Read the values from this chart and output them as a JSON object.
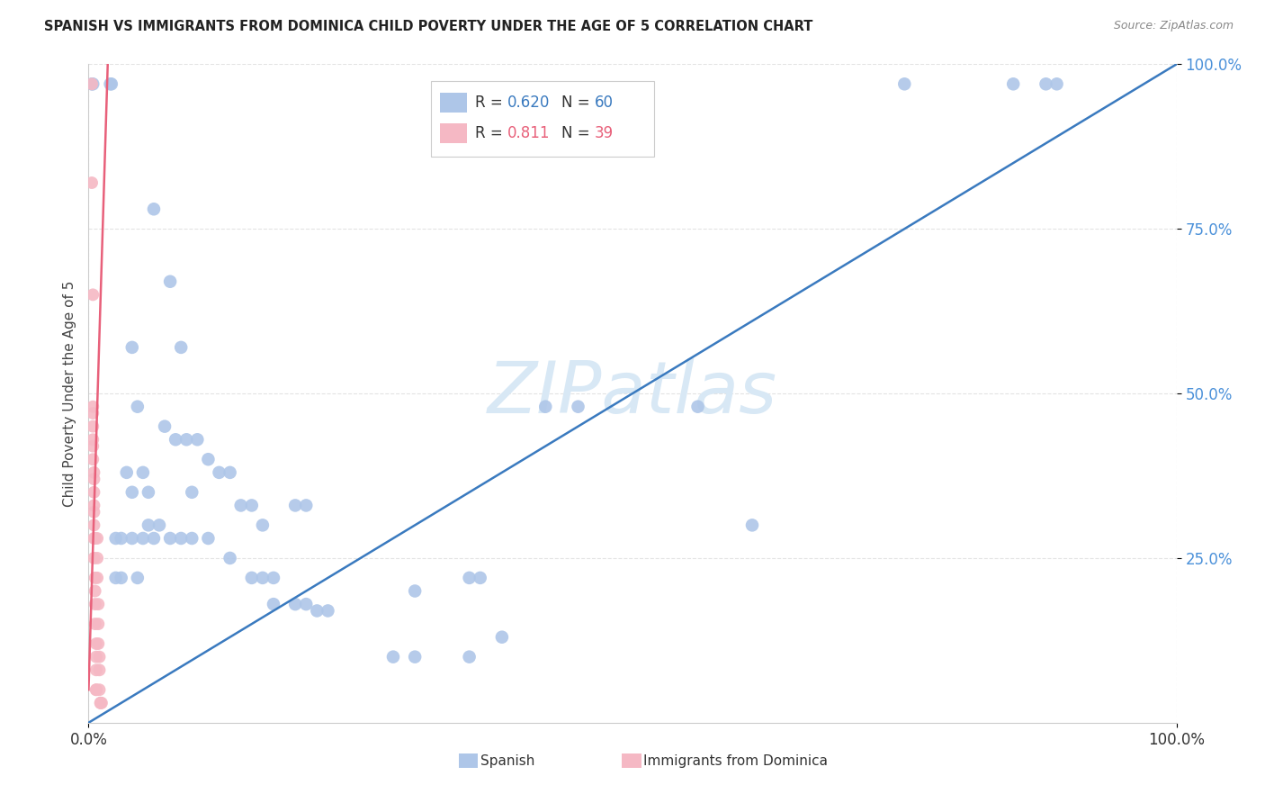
{
  "title": "SPANISH VS IMMIGRANTS FROM DOMINICA CHILD POVERTY UNDER THE AGE OF 5 CORRELATION CHART",
  "source": "Source: ZipAtlas.com",
  "ylabel": "Child Poverty Under the Age of 5",
  "blue_color": "#aec6e8",
  "pink_color": "#f5b8c4",
  "blue_line_color": "#3a7abf",
  "pink_line_color": "#e8607a",
  "legend_blue_text": "#3a7abf",
  "legend_pink_text": "#e8607a",
  "ytick_color": "#4a90d9",
  "watermark_color": "#d8e8f5",
  "spanish_points": [
    [
      0.003,
      0.97
    ],
    [
      0.004,
      0.97
    ],
    [
      0.02,
      0.97
    ],
    [
      0.021,
      0.97
    ],
    [
      0.06,
      0.78
    ],
    [
      0.075,
      0.67
    ],
    [
      0.04,
      0.57
    ],
    [
      0.085,
      0.57
    ],
    [
      0.045,
      0.48
    ],
    [
      0.07,
      0.45
    ],
    [
      0.08,
      0.43
    ],
    [
      0.09,
      0.43
    ],
    [
      0.1,
      0.43
    ],
    [
      0.11,
      0.4
    ],
    [
      0.035,
      0.38
    ],
    [
      0.05,
      0.38
    ],
    [
      0.12,
      0.38
    ],
    [
      0.13,
      0.38
    ],
    [
      0.04,
      0.35
    ],
    [
      0.055,
      0.35
    ],
    [
      0.095,
      0.35
    ],
    [
      0.15,
      0.33
    ],
    [
      0.14,
      0.33
    ],
    [
      0.19,
      0.33
    ],
    [
      0.2,
      0.33
    ],
    [
      0.065,
      0.3
    ],
    [
      0.055,
      0.3
    ],
    [
      0.16,
      0.3
    ],
    [
      0.025,
      0.28
    ],
    [
      0.03,
      0.28
    ],
    [
      0.04,
      0.28
    ],
    [
      0.05,
      0.28
    ],
    [
      0.06,
      0.28
    ],
    [
      0.075,
      0.28
    ],
    [
      0.085,
      0.28
    ],
    [
      0.095,
      0.28
    ],
    [
      0.11,
      0.28
    ],
    [
      0.13,
      0.25
    ],
    [
      0.025,
      0.22
    ],
    [
      0.03,
      0.22
    ],
    [
      0.045,
      0.22
    ],
    [
      0.15,
      0.22
    ],
    [
      0.16,
      0.22
    ],
    [
      0.17,
      0.22
    ],
    [
      0.17,
      0.18
    ],
    [
      0.19,
      0.18
    ],
    [
      0.2,
      0.18
    ],
    [
      0.21,
      0.17
    ],
    [
      0.22,
      0.17
    ],
    [
      0.3,
      0.2
    ],
    [
      0.35,
      0.22
    ],
    [
      0.36,
      0.22
    ],
    [
      0.28,
      0.1
    ],
    [
      0.3,
      0.1
    ],
    [
      0.35,
      0.1
    ],
    [
      0.38,
      0.13
    ],
    [
      0.42,
      0.48
    ],
    [
      0.45,
      0.48
    ],
    [
      0.56,
      0.48
    ],
    [
      0.61,
      0.3
    ],
    [
      0.75,
      0.97
    ],
    [
      0.85,
      0.97
    ],
    [
      0.88,
      0.97
    ],
    [
      0.89,
      0.97
    ]
  ],
  "dominica_points": [
    [
      0.003,
      0.97
    ],
    [
      0.003,
      0.82
    ],
    [
      0.004,
      0.65
    ],
    [
      0.004,
      0.48
    ],
    [
      0.004,
      0.45
    ],
    [
      0.004,
      0.42
    ],
    [
      0.005,
      0.38
    ],
    [
      0.005,
      0.35
    ],
    [
      0.005,
      0.32
    ],
    [
      0.005,
      0.3
    ],
    [
      0.005,
      0.28
    ],
    [
      0.005,
      0.25
    ],
    [
      0.006,
      0.22
    ],
    [
      0.006,
      0.2
    ],
    [
      0.006,
      0.18
    ],
    [
      0.006,
      0.15
    ],
    [
      0.007,
      0.12
    ],
    [
      0.007,
      0.1
    ],
    [
      0.007,
      0.08
    ],
    [
      0.007,
      0.05
    ],
    [
      0.008,
      0.28
    ],
    [
      0.008,
      0.25
    ],
    [
      0.008,
      0.22
    ],
    [
      0.009,
      0.18
    ],
    [
      0.009,
      0.15
    ],
    [
      0.009,
      0.12
    ],
    [
      0.01,
      0.1
    ],
    [
      0.01,
      0.08
    ],
    [
      0.01,
      0.05
    ],
    [
      0.011,
      0.03
    ],
    [
      0.011,
      0.03
    ],
    [
      0.012,
      0.03
    ],
    [
      0.004,
      0.47
    ],
    [
      0.004,
      0.43
    ],
    [
      0.004,
      0.4
    ],
    [
      0.005,
      0.37
    ],
    [
      0.005,
      0.33
    ],
    [
      0.006,
      0.28
    ],
    [
      0.007,
      0.05
    ]
  ],
  "blue_line": [
    [
      0.0,
      0.0
    ],
    [
      1.0,
      1.0
    ]
  ],
  "pink_line": [
    [
      0.0,
      0.05
    ],
    [
      0.018,
      1.02
    ]
  ]
}
